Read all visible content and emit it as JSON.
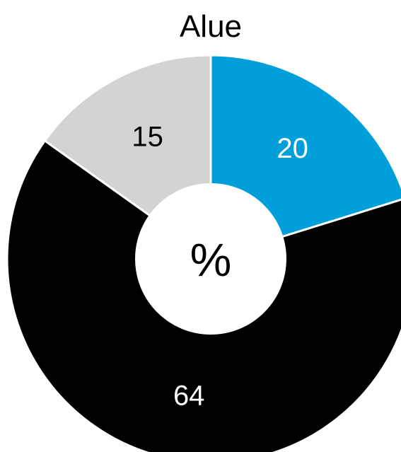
{
  "chart_data": {
    "type": "pie",
    "title": "Alue",
    "center_label": "%",
    "slices": [
      {
        "value": 20,
        "label": "20",
        "color": "#009fda",
        "label_color": "#ffffff"
      },
      {
        "value": 64,
        "label": "64",
        "color": "#000000",
        "label_color": "#ffffff"
      },
      {
        "value": 15,
        "label": "15",
        "color": "#d3d3d3",
        "label_color": "#000000"
      }
    ],
    "start_angle_deg": 0,
    "direction": "clockwise",
    "donut": true,
    "legend": "none"
  }
}
